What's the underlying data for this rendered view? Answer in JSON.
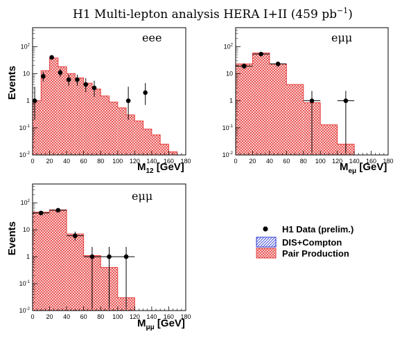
{
  "figure": {
    "title_main": "H1 Multi-lepton analysis   HERA I+II (459 pb",
    "title_sup": "−1",
    "title_close": ")"
  },
  "legend": {
    "items": [
      {
        "label": "H1 Data (prelim.)",
        "marker": "dot"
      },
      {
        "label": "DIS+Compton",
        "marker": "blue-hatch"
      },
      {
        "label": "Pair Production",
        "marker": "red-crosshatch"
      }
    ]
  },
  "colors": {
    "pair_fill": "#e6413f",
    "pair_hatch": "#ffffff",
    "dis_hatch": "#1f2fd0",
    "data": "#000000",
    "axis": "#000000"
  },
  "chart_data": [
    {
      "type": "bar",
      "panel_label": "eee",
      "ylabel": "Events",
      "xlabel_main": "M",
      "xlabel_sub": "12",
      "xlabel_unit": " [GeV]",
      "xlim": [
        0,
        180
      ],
      "ylim": [
        0.01,
        500
      ],
      "yscale": "log",
      "xticks": [
        0,
        20,
        40,
        60,
        80,
        100,
        120,
        140,
        160,
        180
      ],
      "yticks": [
        {
          "base": "10",
          "exp": "-2",
          "v": 0.01
        },
        {
          "base": "10",
          "exp": "-1",
          "v": 0.1
        },
        {
          "base": "1",
          "exp": "",
          "v": 1
        },
        {
          "base": "10",
          "exp": "",
          "v": 10
        },
        {
          "base": "10",
          "exp": "2",
          "v": 100
        }
      ],
      "bin_edges": [
        0,
        5,
        10,
        15,
        20,
        25,
        30,
        35,
        40,
        45,
        50,
        55,
        60,
        65,
        70,
        75,
        80,
        85,
        90,
        95,
        100,
        105,
        110,
        115,
        120,
        125,
        130,
        135,
        140,
        145,
        150,
        155,
        160,
        165,
        170
      ],
      "series": [
        {
          "name": "Pair Production",
          "kind": "histogram",
          "bins": [
            [
              0,
              10,
              1.0
            ],
            [
              10,
              20,
              13
            ],
            [
              20,
              30,
              38
            ],
            [
              30,
              40,
              18
            ],
            [
              40,
              50,
              10
            ],
            [
              50,
              60,
              7
            ],
            [
              60,
              70,
              4.5
            ],
            [
              70,
              80,
              2.7
            ],
            [
              80,
              90,
              1.5
            ],
            [
              90,
              100,
              0.9
            ],
            [
              100,
              110,
              0.55
            ],
            [
              110,
              120,
              0.3
            ],
            [
              120,
              130,
              0.18
            ],
            [
              130,
              140,
              0.09
            ],
            [
              140,
              150,
              0.055
            ],
            [
              150,
              160,
              0.025
            ],
            [
              160,
              170,
              0.013
            ]
          ]
        },
        {
          "name": "H1 Data (prelim.)",
          "kind": "points",
          "points": [
            {
              "x": 2.5,
              "y": 1,
              "xerr": 2.5,
              "ylo": 0.2,
              "yhi": 3.3
            },
            {
              "x": 12.5,
              "y": 8,
              "xerr": 2.5,
              "ylo": 5.2,
              "yhi": 11.5
            },
            {
              "x": 22.5,
              "y": 40,
              "xerr": 2.5,
              "ylo": 33.7,
              "yhi": 47.6
            },
            {
              "x": 32.5,
              "y": 11,
              "xerr": 2.5,
              "ylo": 7.7,
              "yhi": 15
            },
            {
              "x": 42.5,
              "y": 6,
              "xerr": 2.5,
              "ylo": 3.6,
              "yhi": 9.2
            },
            {
              "x": 52.5,
              "y": 6,
              "xerr": 2.5,
              "ylo": 3.6,
              "yhi": 9.2
            },
            {
              "x": 62.5,
              "y": 4,
              "xerr": 2.5,
              "ylo": 2.1,
              "yhi": 6.8
            },
            {
              "x": 72.5,
              "y": 3,
              "xerr": 2.5,
              "ylo": 1.4,
              "yhi": 5.5
            },
            {
              "x": 112.5,
              "y": 1,
              "xerr": 2.5,
              "ylo": 0.2,
              "yhi": 3.3
            },
            {
              "x": 132.5,
              "y": 2,
              "xerr": 2.5,
              "ylo": 0.7,
              "yhi": 4.5
            }
          ]
        }
      ]
    },
    {
      "type": "bar",
      "panel_label": "eμμ",
      "ylabel": "",
      "xlabel_main": "M",
      "xlabel_sub": "eμ",
      "xlabel_unit": " [GeV]",
      "xlim": [
        0,
        180
      ],
      "ylim": [
        0.01,
        500
      ],
      "yscale": "log",
      "xticks": [
        0,
        20,
        40,
        60,
        80,
        100,
        120,
        140,
        160,
        180
      ],
      "yticks": [
        {
          "base": "10",
          "exp": "-2",
          "v": 0.01
        },
        {
          "base": "10",
          "exp": "-1",
          "v": 0.1
        },
        {
          "base": "1",
          "exp": "",
          "v": 1
        },
        {
          "base": "10",
          "exp": "",
          "v": 10
        },
        {
          "base": "10",
          "exp": "2",
          "v": 100
        }
      ],
      "series": [
        {
          "name": "Pair Production",
          "kind": "histogram",
          "bins": [
            [
              0,
              20,
              23
            ],
            [
              20,
              40,
              58
            ],
            [
              40,
              60,
              23
            ],
            [
              60,
              80,
              4
            ],
            [
              80,
              100,
              0.85
            ],
            [
              100,
              120,
              0.13
            ],
            [
              120,
              140,
              0.025
            ]
          ]
        },
        {
          "name": "H1 Data (prelim.)",
          "kind": "points",
          "points": [
            {
              "x": 10,
              "y": 19,
              "xerr": 10,
              "ylo": 15,
              "yhi": 24
            },
            {
              "x": 30,
              "y": 53,
              "xerr": 10,
              "ylo": 45,
              "yhi": 61
            },
            {
              "x": 50,
              "y": 23,
              "xerr": 10,
              "ylo": 18,
              "yhi": 28
            },
            {
              "x": 90,
              "y": 1,
              "xerr": 10,
              "ylo": 0.012,
              "yhi": 2.3
            },
            {
              "x": 130,
              "y": 1,
              "xerr": 10,
              "ylo": 0.012,
              "yhi": 2.3
            }
          ]
        }
      ]
    },
    {
      "type": "bar",
      "panel_label": "eμμ",
      "ylabel": "Events",
      "xlabel_main": "M",
      "xlabel_sub": "μμ",
      "xlabel_unit": " [GeV]",
      "xlim": [
        0,
        180
      ],
      "ylim": [
        0.01,
        500
      ],
      "yscale": "log",
      "xticks": [
        0,
        20,
        40,
        60,
        80,
        100,
        120,
        140,
        160,
        180
      ],
      "yticks": [
        {
          "base": "10",
          "exp": "-2",
          "v": 0.01
        },
        {
          "base": "10",
          "exp": "-1",
          "v": 0.1
        },
        {
          "base": "1",
          "exp": "",
          "v": 1
        },
        {
          "base": "10",
          "exp": "",
          "v": 10
        },
        {
          "base": "10",
          "exp": "2",
          "v": 100
        }
      ],
      "series": [
        {
          "name": "Pair Production",
          "kind": "histogram",
          "bins": [
            [
              0,
              20,
              45
            ],
            [
              20,
              40,
              55
            ],
            [
              40,
              60,
              7
            ],
            [
              60,
              80,
              1.1
            ],
            [
              80,
              100,
              0.4
            ],
            [
              100,
              120,
              0.03
            ]
          ]
        },
        {
          "name": "H1 Data (prelim.)",
          "kind": "points",
          "points": [
            {
              "x": 10,
              "y": 42,
              "xerr": 10,
              "ylo": 36,
              "yhi": 49
            },
            {
              "x": 30,
              "y": 53,
              "xerr": 10,
              "ylo": 46,
              "yhi": 60
            },
            {
              "x": 50,
              "y": 6,
              "xerr": 10,
              "ylo": 4,
              "yhi": 8.5
            },
            {
              "x": 70,
              "y": 1,
              "xerr": 10,
              "ylo": 0.012,
              "yhi": 2.3
            },
            {
              "x": 90,
              "y": 1,
              "xerr": 10,
              "ylo": 0.012,
              "yhi": 2.3
            },
            {
              "x": 110,
              "y": 1,
              "xerr": 10,
              "ylo": 0.012,
              "yhi": 2.3
            }
          ]
        }
      ]
    }
  ]
}
